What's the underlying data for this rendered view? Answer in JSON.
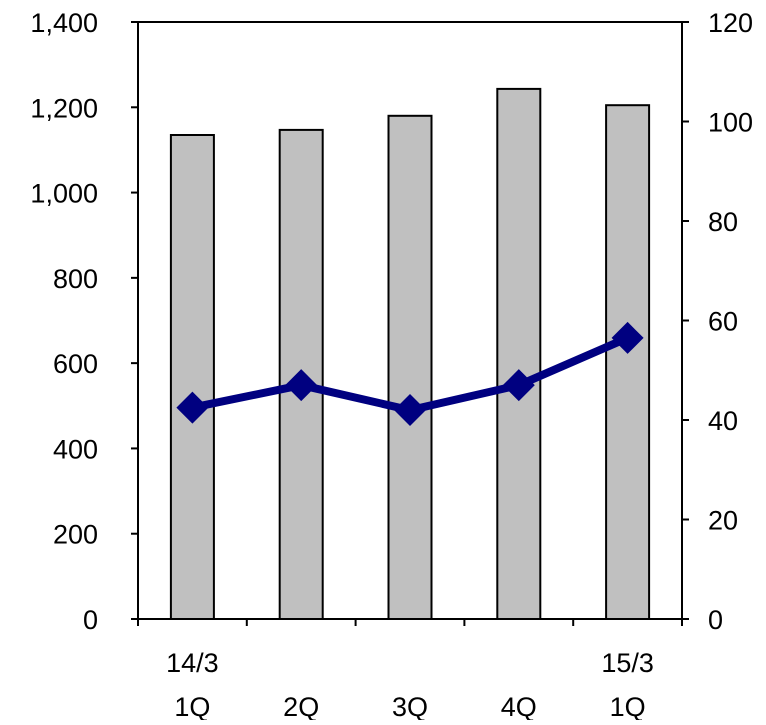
{
  "chart_data": {
    "type": "bar",
    "categories": [
      "1Q",
      "2Q",
      "3Q",
      "4Q",
      "1Q"
    ],
    "year_labels": [
      "14/3",
      "",
      "",
      "",
      "15/3"
    ],
    "bar_values": [
      1135,
      1147,
      1180,
      1243,
      1205
    ],
    "line_values": [
      42.5,
      47.0,
      42.0,
      47.0,
      56.5
    ],
    "y_left": {
      "range": [
        0,
        1400
      ],
      "ticks": [
        0,
        200,
        400,
        600,
        800,
        1000,
        1200,
        1400
      ],
      "tick_labels": [
        "0",
        "200",
        "400",
        "600",
        "800",
        "1,000",
        "1,200",
        "1,400"
      ]
    },
    "y_right": {
      "range": [
        0,
        120
      ],
      "ticks": [
        0,
        20,
        40,
        60,
        80,
        100,
        120
      ],
      "tick_labels": [
        "0",
        "20",
        "40",
        "60",
        "80",
        "100",
        "120"
      ]
    },
    "grid": false,
    "legend": "none",
    "colors": {
      "bar_fill": "#c0c0c0",
      "bar_stroke": "#000000",
      "line": "#000080",
      "marker": "#000080"
    }
  }
}
